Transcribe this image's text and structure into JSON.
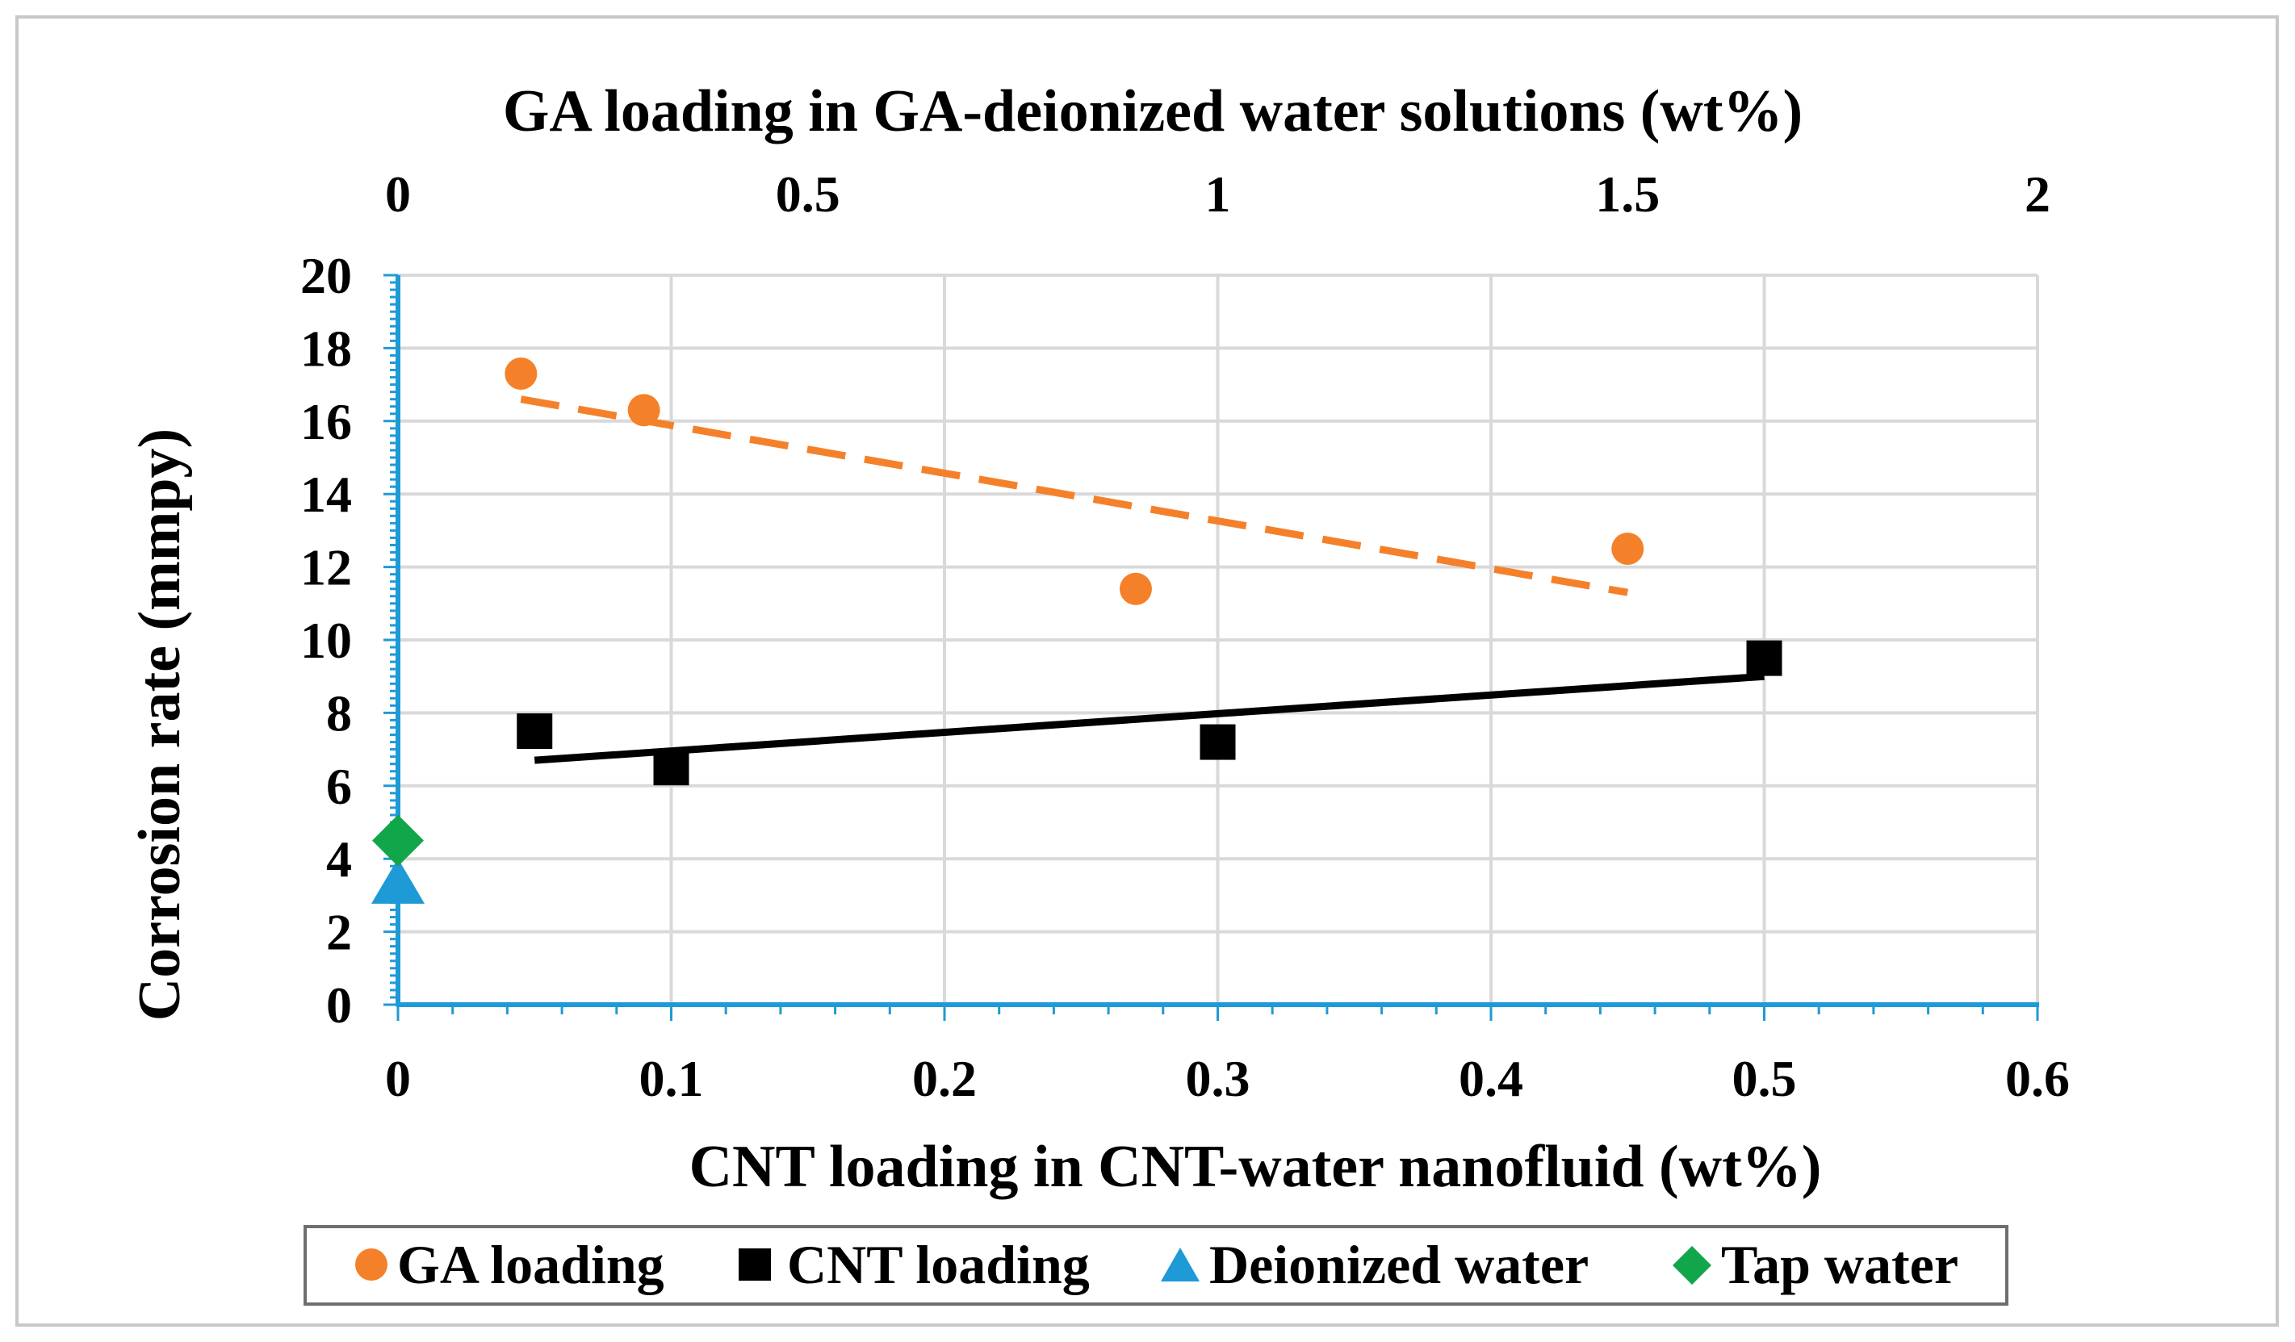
{
  "chart_data": {
    "type": "scatter",
    "title": "",
    "xlabel_bottom": "CNT loading in CNT-water nanofluid (wt%)",
    "xlabel_top": "GA loading in GA-deionized water solutions (wt%)",
    "ylabel": "Corrosion rate (mmpy)",
    "ylim": [
      0,
      20
    ],
    "yticks": [
      0,
      2,
      4,
      6,
      8,
      10,
      12,
      14,
      16,
      18,
      20
    ],
    "ytick_labels": [
      "0",
      "2",
      "4",
      "6",
      "8",
      "10",
      "12",
      "14",
      "16",
      "18",
      "20"
    ],
    "xlim_bottom": [
      0,
      0.6
    ],
    "xticks_bottom": [
      0,
      0.1,
      0.2,
      0.3,
      0.4,
      0.5,
      0.6
    ],
    "xtick_labels_bottom": [
      "0",
      "0.1",
      "0.2",
      "0.3",
      "0.4",
      "0.5",
      "0.6"
    ],
    "xlim_top": [
      0,
      2
    ],
    "xticks_top": [
      0,
      0.5,
      1,
      1.5,
      2
    ],
    "xtick_labels_top": [
      "0",
      "0.5",
      "1",
      "1.5",
      "2"
    ],
    "grid": true,
    "legend_position": "bottom",
    "series": [
      {
        "name": "GA loading",
        "axis": "top",
        "marker": "circle",
        "color": "#F4812A",
        "points": [
          {
            "x": 0.15,
            "y": 17.3
          },
          {
            "x": 0.3,
            "y": 16.3
          },
          {
            "x": 0.9,
            "y": 11.4
          },
          {
            "x": 1.5,
            "y": 12.5
          }
        ],
        "trendline": {
          "style": "dashed",
          "x0": 0.15,
          "y0": 16.6,
          "x1": 1.5,
          "y1": 11.3
        }
      },
      {
        "name": "CNT loading",
        "axis": "bottom",
        "marker": "square",
        "color": "#000000",
        "points": [
          {
            "x": 0.05,
            "y": 7.5
          },
          {
            "x": 0.1,
            "y": 6.5
          },
          {
            "x": 0.3,
            "y": 7.2
          },
          {
            "x": 0.5,
            "y": 9.5
          }
        ],
        "trendline": {
          "style": "solid",
          "x0": 0.05,
          "y0": 6.7,
          "x1": 0.5,
          "y1": 9.0
        }
      },
      {
        "name": "Deionized water",
        "axis": "bottom",
        "marker": "triangle",
        "color": "#1E9AD6",
        "points": [
          {
            "x": 0,
            "y": 3.3
          }
        ]
      },
      {
        "name": "Tap water",
        "axis": "bottom",
        "marker": "diamond",
        "color": "#11A64A",
        "points": [
          {
            "x": 0,
            "y": 4.5
          }
        ]
      }
    ]
  },
  "colors": {
    "axis": "#1E9AD6",
    "grid": "#D9D9D9",
    "frame": "#C8C8C8",
    "legend_border": "#6E6E6E"
  }
}
